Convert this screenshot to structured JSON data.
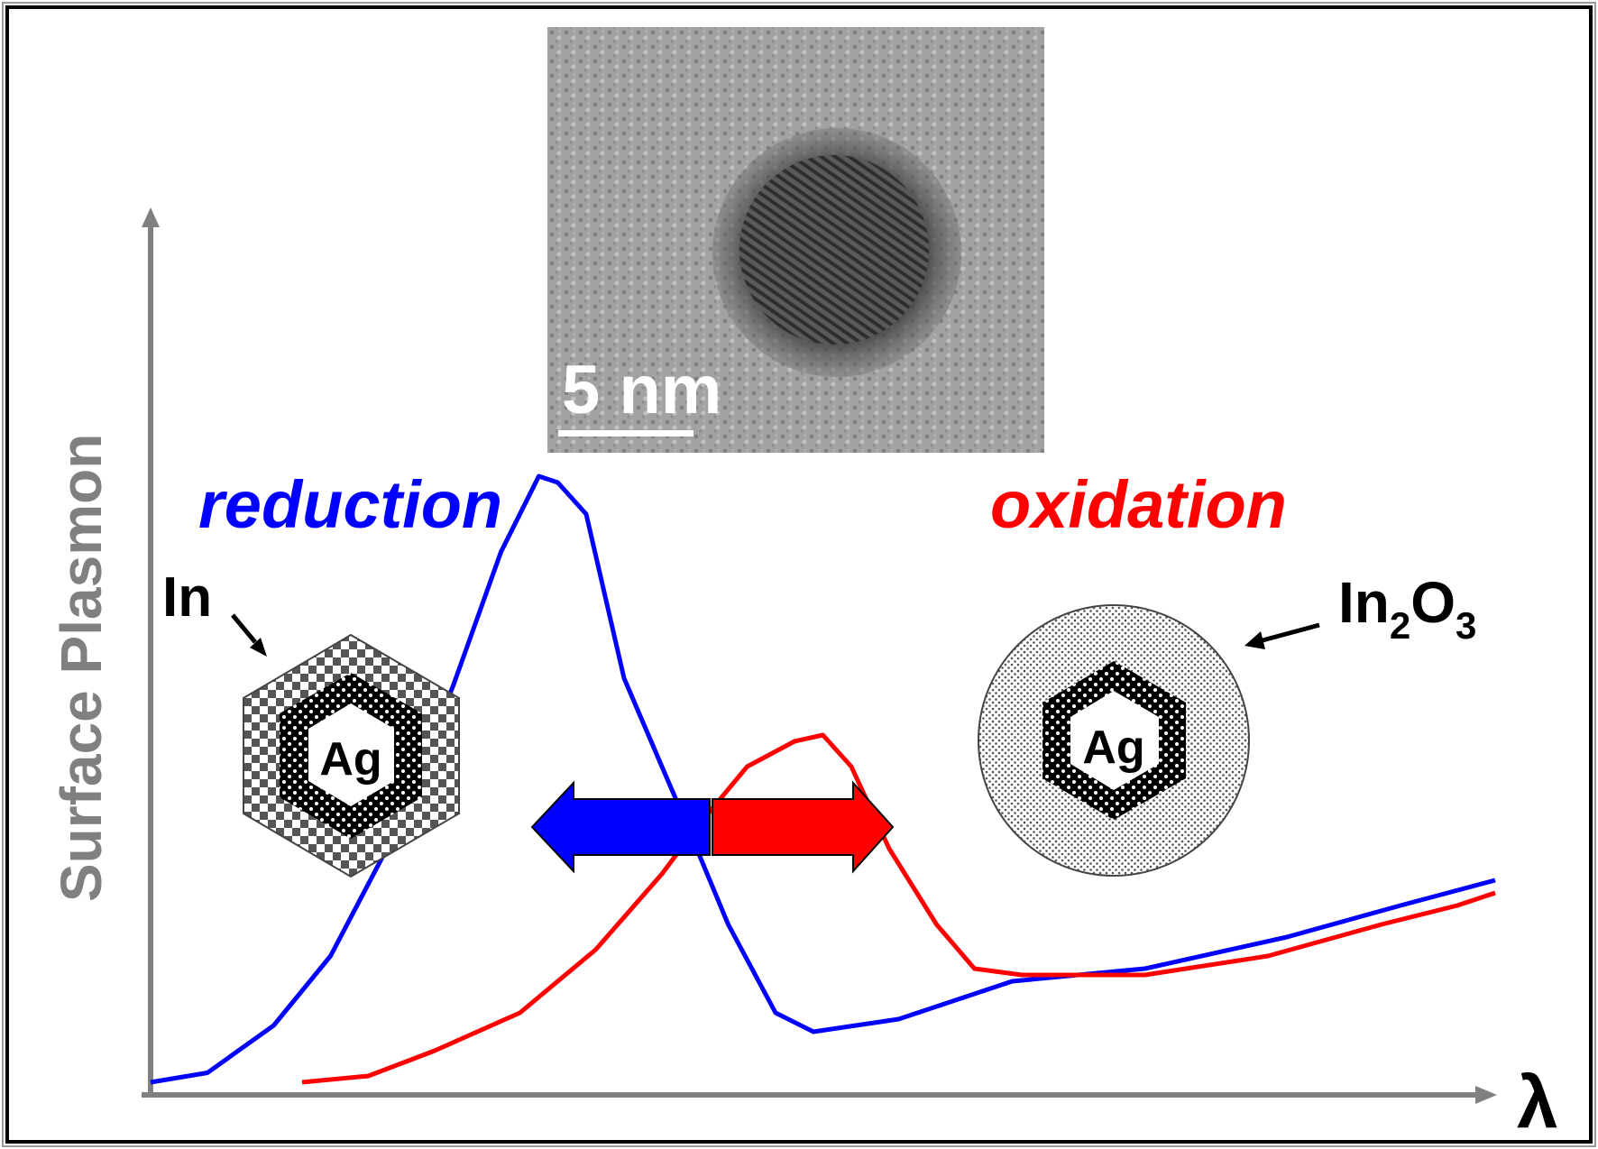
{
  "ylabel": "Surface Plasmon",
  "xlabel": "λ",
  "scale_bar": "5 nm",
  "process_left": "reduction",
  "process_right": "oxidation",
  "left_particle": {
    "shell": "In",
    "core": "Ag"
  },
  "right_particle": {
    "shell_base": "In",
    "shell_sub1": "2",
    "shell_mid": "O",
    "shell_sub2": "3",
    "core": "Ag"
  },
  "colors": {
    "reduction": "#0000ff",
    "oxidation": "#ff0000",
    "axis": "#808080",
    "ylabel": "#808080"
  },
  "curves": {
    "reduction": [
      [
        0.0,
        0.02
      ],
      [
        0.06,
        0.035
      ],
      [
        0.13,
        0.11
      ],
      [
        0.19,
        0.22
      ],
      [
        0.26,
        0.42
      ],
      [
        0.32,
        0.65
      ],
      [
        0.37,
        0.86
      ],
      [
        0.41,
        0.98
      ],
      [
        0.43,
        0.97
      ],
      [
        0.46,
        0.92
      ],
      [
        0.5,
        0.66
      ],
      [
        0.56,
        0.45
      ],
      [
        0.61,
        0.27
      ],
      [
        0.66,
        0.13
      ],
      [
        0.7,
        0.1
      ],
      [
        0.79,
        0.12
      ],
      [
        0.91,
        0.18
      ],
      [
        1.05,
        0.2
      ],
      [
        1.2,
        0.25
      ],
      [
        1.32,
        0.3
      ],
      [
        1.42,
        0.34
      ]
    ],
    "oxidation": [
      [
        0.16,
        0.02
      ],
      [
        0.23,
        0.03
      ],
      [
        0.3,
        0.07
      ],
      [
        0.39,
        0.13
      ],
      [
        0.47,
        0.23
      ],
      [
        0.54,
        0.35
      ],
      [
        0.58,
        0.43
      ],
      [
        0.63,
        0.52
      ],
      [
        0.68,
        0.56
      ],
      [
        0.71,
        0.57
      ],
      [
        0.74,
        0.52
      ],
      [
        0.78,
        0.39
      ],
      [
        0.83,
        0.27
      ],
      [
        0.87,
        0.2
      ],
      [
        0.92,
        0.19
      ],
      [
        1.05,
        0.19
      ],
      [
        1.18,
        0.22
      ],
      [
        1.3,
        0.27
      ],
      [
        1.38,
        0.3
      ],
      [
        1.42,
        0.32
      ]
    ]
  }
}
